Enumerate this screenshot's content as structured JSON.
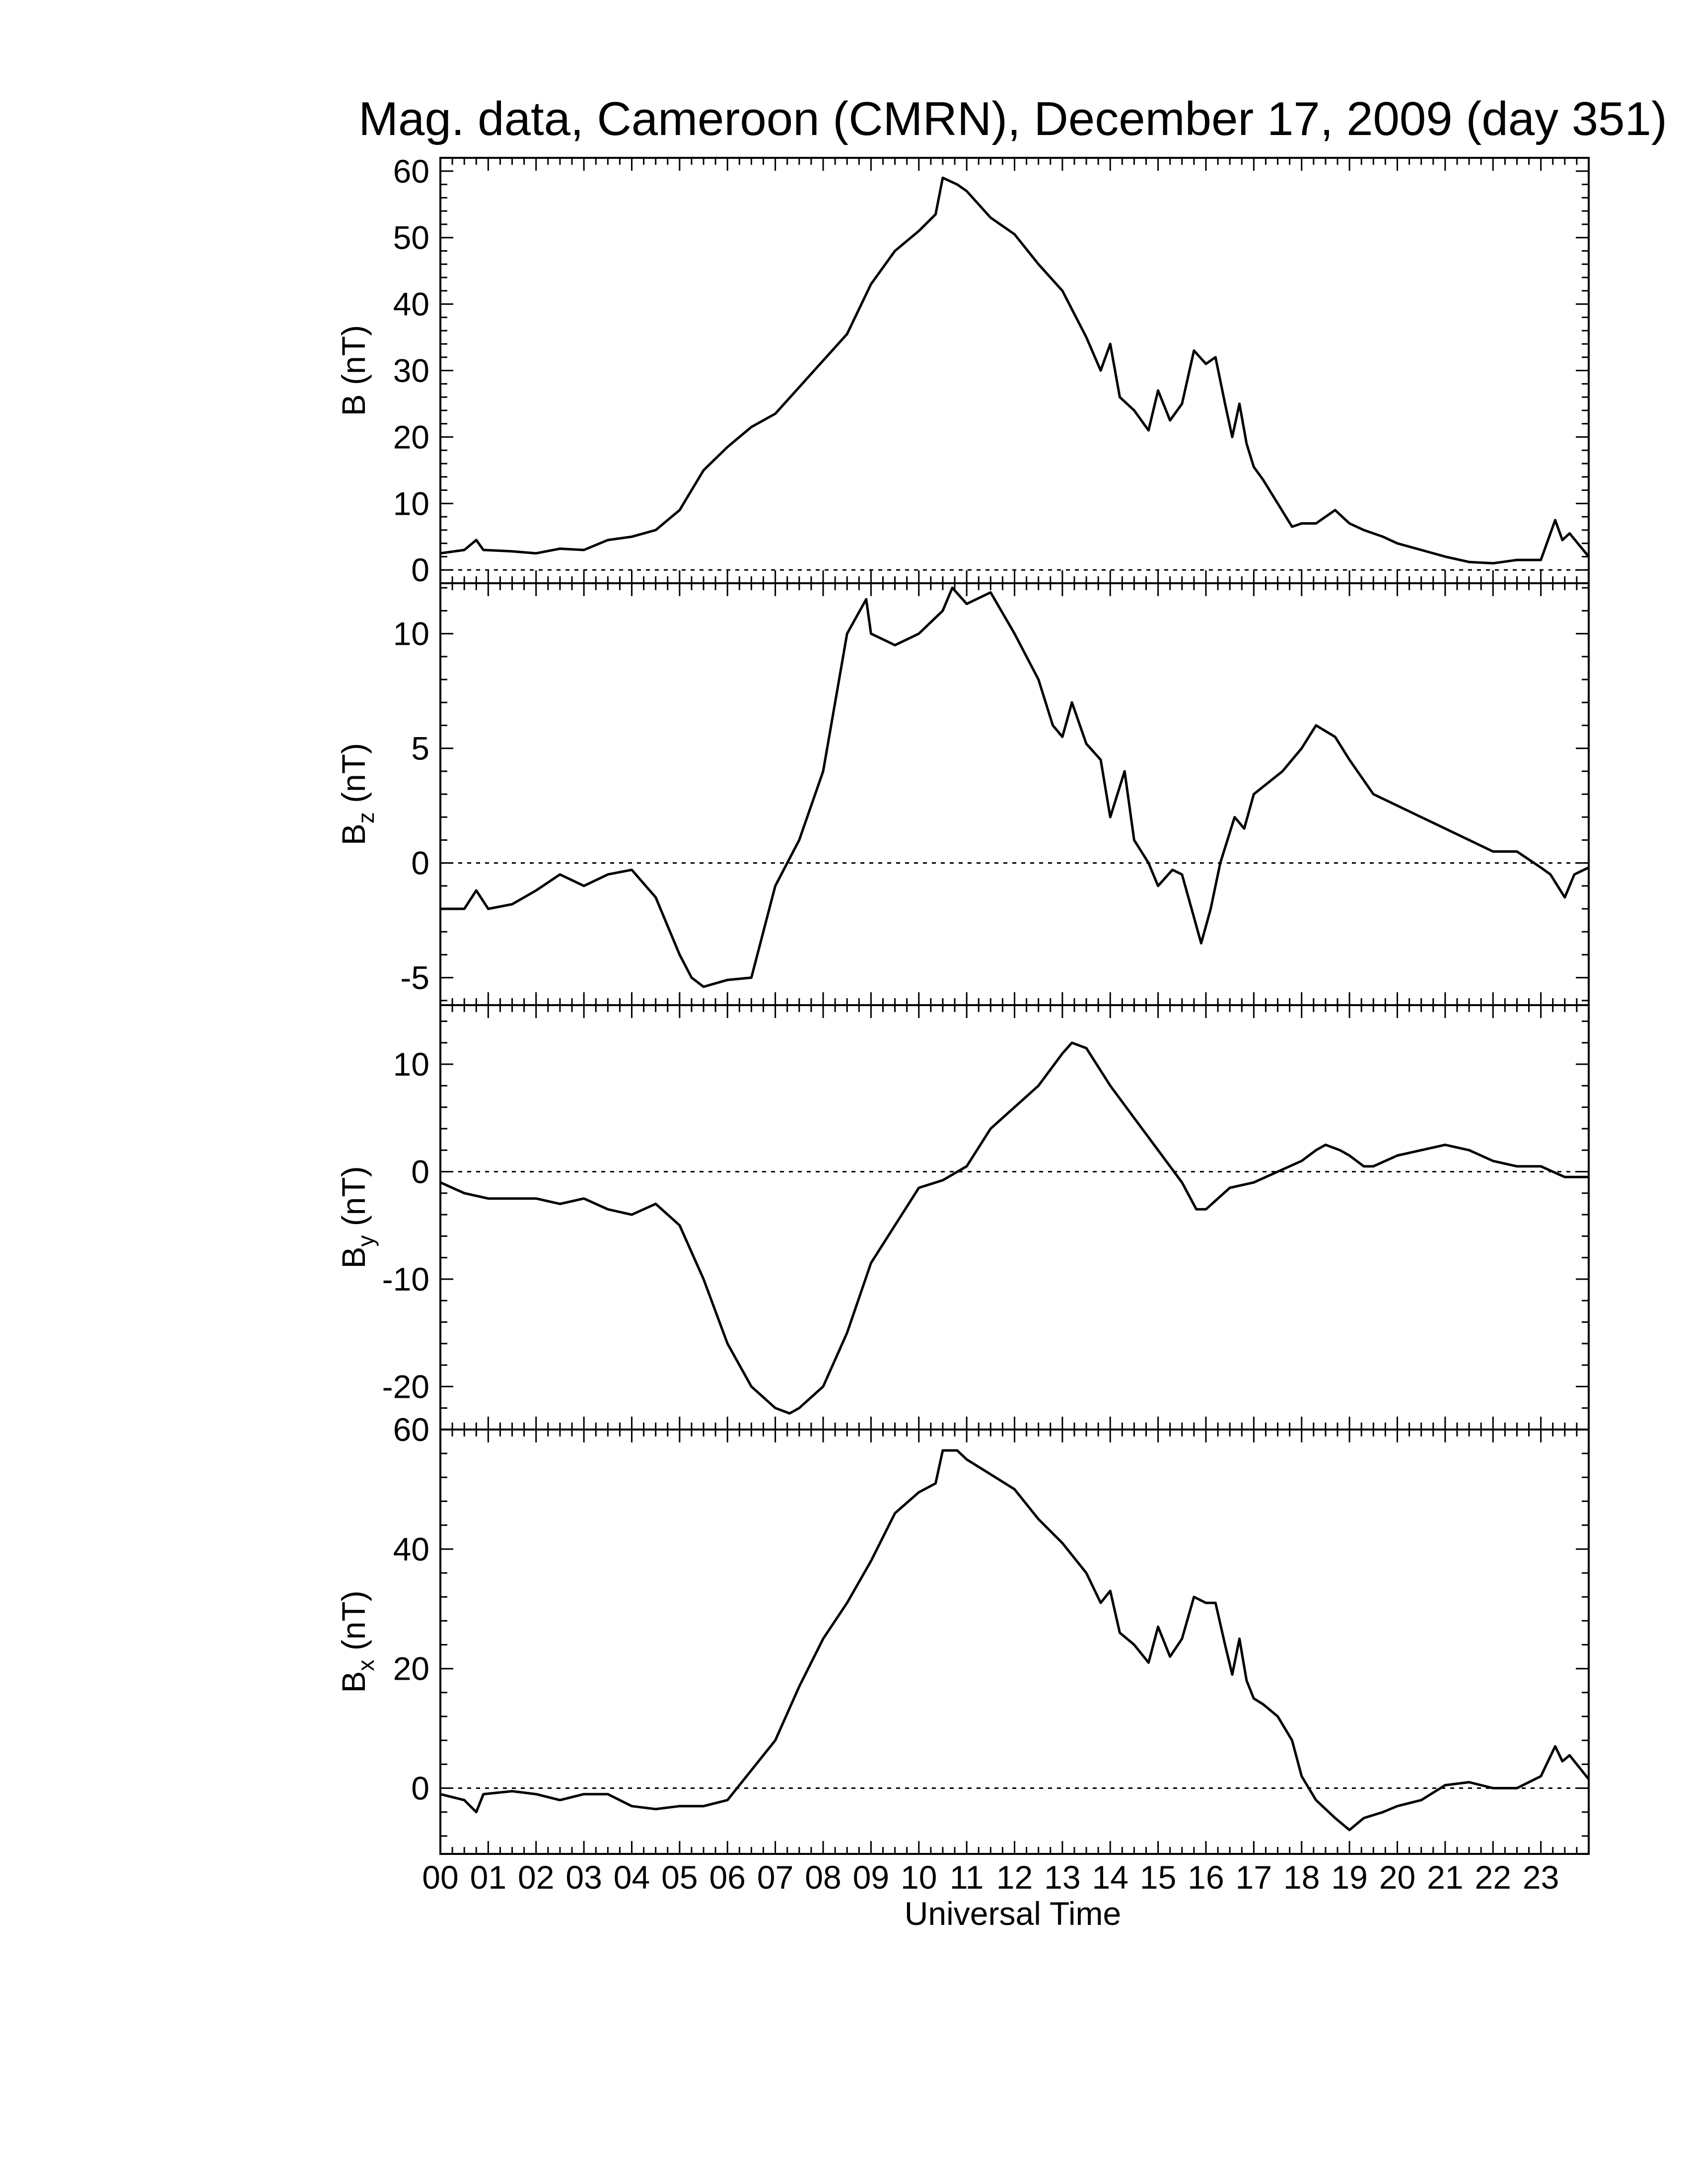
{
  "chart_data": {
    "type": "line",
    "title": "Mag. data, Cameroon (CMRN), December 17, 2009 (day 351)",
    "xlabel": "Universal Time",
    "x_tick_labels": [
      "00",
      "01",
      "02",
      "03",
      "04",
      "05",
      "06",
      "07",
      "08",
      "09",
      "10",
      "11",
      "12",
      "13",
      "14",
      "15",
      "16",
      "17",
      "18",
      "19",
      "20",
      "21",
      "22",
      "23"
    ],
    "xlim": [
      0,
      24
    ],
    "panels": [
      {
        "id": "B",
        "ylabel_main": "B",
        "ylabel_sub": "",
        "ylabel_unit": "(nT)",
        "ylim": [
          -2,
          62
        ],
        "yticks": [
          0,
          10,
          20,
          30,
          40,
          50,
          60
        ],
        "zero_line": true,
        "series": [
          {
            "x": [
              0,
              0.5,
              0.75,
              0.9,
              1.5,
              2,
              2.5,
              3,
              3.5,
              4,
              4.5,
              5,
              5.25,
              5.5,
              6,
              6.5,
              7,
              7.5,
              8,
              8.5,
              9,
              9.5,
              10,
              10.35,
              10.5,
              10.8,
              11,
              11.5,
              12,
              12.5,
              13,
              13.5,
              13.8,
              14,
              14.2,
              14.5,
              14.8,
              15,
              15.25,
              15.5,
              15.75,
              16,
              16.2,
              16.4,
              16.55,
              16.7,
              16.85,
              17,
              17.2,
              17.5,
              17.8,
              18,
              18.3,
              18.7,
              19,
              19.3,
              19.7,
              20,
              20.5,
              21,
              21.5,
              22,
              22.5,
              23,
              23.3,
              23.45,
              23.6,
              24
            ],
            "y": [
              2.5,
              3,
              4.5,
              3,
              2.8,
              2.5,
              3.2,
              3,
              4.5,
              5,
              6,
              9,
              12,
              15,
              18.5,
              21.5,
              23.5,
              27.5,
              31.5,
              35.5,
              43,
              48,
              51,
              53.5,
              59,
              58,
              57,
              53,
              50.5,
              46,
              42,
              35,
              30,
              34,
              26,
              24,
              21,
              27,
              22.5,
              25,
              33,
              31,
              32,
              25,
              20,
              25,
              19,
              15.5,
              13.5,
              10,
              6.5,
              7,
              7,
              9,
              7,
              6,
              5,
              4,
              3,
              2,
              1.2,
              1,
              1.5,
              1.5,
              7.5,
              4.5,
              5.5,
              2
            ]
          }
        ]
      },
      {
        "id": "Bz",
        "ylabel_main": "B",
        "ylabel_sub": "z",
        "ylabel_unit": "(nT)",
        "ylim": [
          -6.2,
          12.2
        ],
        "yticks": [
          -5,
          0,
          5,
          10
        ],
        "zero_line": true,
        "series": [
          {
            "x": [
              0,
              0.5,
              0.75,
              1,
              1.5,
              2,
              2.5,
              3,
              3.5,
              4,
              4.5,
              5,
              5.25,
              5.5,
              6,
              6.5,
              7,
              7.5,
              8,
              8.5,
              8.9,
              9,
              9.5,
              10,
              10.5,
              10.7,
              11,
              11.5,
              12,
              12.5,
              12.8,
              13,
              13.2,
              13.5,
              13.8,
              14,
              14.3,
              14.5,
              14.8,
              15,
              15.3,
              15.5,
              15.9,
              16.1,
              16.3,
              16.6,
              16.8,
              17,
              17.3,
              17.6,
              18,
              18.3,
              18.7,
              19,
              19.5,
              20,
              20.5,
              21,
              21.5,
              22,
              22.5,
              23,
              23.2,
              23.5,
              23.7,
              24
            ],
            "y": [
              -2,
              -2,
              -1.2,
              -2,
              -1.8,
              -1.2,
              -0.5,
              -1,
              -0.5,
              -0.3,
              -1.5,
              -4,
              -5,
              -5.4,
              -5.1,
              -5,
              -1,
              1,
              4,
              10,
              11.5,
              10,
              9.5,
              10,
              11,
              12,
              11.3,
              11.8,
              10,
              8,
              6,
              5.5,
              7,
              5.2,
              4.5,
              2,
              4,
              1,
              0,
              -1,
              -0.3,
              -0.5,
              -3.5,
              -2,
              0,
              2,
              1.5,
              3,
              3.5,
              4,
              5,
              6,
              5.5,
              4.5,
              3,
              2.5,
              2,
              1.5,
              1,
              0.5,
              0.5,
              -0.2,
              -0.5,
              -1.5,
              -0.5,
              -0.2
            ]
          }
        ]
      },
      {
        "id": "By",
        "ylabel_main": "B",
        "ylabel_sub": "y",
        "ylabel_unit": "(nT)",
        "ylim": [
          -24,
          15.5
        ],
        "yticks": [
          -20,
          -10,
          0,
          10
        ],
        "zero_line": true,
        "series": [
          {
            "x": [
              0,
              0.5,
              1,
              1.5,
              2,
              2.5,
              3,
              3.5,
              4,
              4.5,
              5,
              5.5,
              6,
              6.5,
              7,
              7.3,
              7.5,
              8,
              8.5,
              9,
              9.5,
              10,
              10.5,
              11,
              11.5,
              12,
              12.5,
              13,
              13.2,
              13.5,
              14,
              14.5,
              15,
              15.5,
              15.8,
              16,
              16.5,
              17,
              17.5,
              18,
              18.3,
              18.5,
              18.8,
              19,
              19.3,
              19.5,
              20,
              20.5,
              21,
              21.5,
              22,
              22.5,
              23,
              23.5,
              24
            ],
            "y": [
              -1,
              -2,
              -2.5,
              -2.5,
              -2.5,
              -3,
              -2.5,
              -3.5,
              -4,
              -3,
              -5,
              -10,
              -16,
              -20,
              -22,
              -22.5,
              -22,
              -20,
              -15,
              -8.5,
              -5,
              -1.5,
              -0.8,
              0.5,
              4,
              6,
              8,
              11,
              12,
              11.5,
              8,
              5,
              2,
              -1,
              -3.5,
              -3.5,
              -1.5,
              -1,
              0,
              1,
              2,
              2.5,
              2,
              1.5,
              0.5,
              0.5,
              1.5,
              2,
              2.5,
              2,
              1,
              0.5,
              0.5,
              -0.5,
              -0.5
            ]
          }
        ]
      },
      {
        "id": "Bx",
        "ylabel_main": "B",
        "ylabel_sub": "x",
        "ylabel_unit": "(nT)",
        "ylim": [
          -11,
          60
        ],
        "yticks": [
          0,
          20,
          40,
          60
        ],
        "zero_line": true,
        "series": [
          {
            "x": [
              0,
              0.5,
              0.75,
              0.9,
              1.5,
              2,
              2.5,
              3,
              3.5,
              4,
              4.5,
              5,
              5.5,
              6,
              6.5,
              7,
              7.5,
              8,
              8.5,
              9,
              9.5,
              10,
              10.35,
              10.5,
              10.8,
              11,
              11.5,
              12,
              12.5,
              13,
              13.5,
              13.8,
              14,
              14.2,
              14.5,
              14.8,
              15,
              15.25,
              15.5,
              15.75,
              16,
              16.2,
              16.4,
              16.55,
              16.7,
              16.85,
              17,
              17.2,
              17.5,
              17.8,
              18,
              18.3,
              18.7,
              19,
              19.3,
              19.7,
              20,
              20.5,
              21,
              21.5,
              22,
              22.5,
              23,
              23.3,
              23.45,
              23.6,
              24
            ],
            "y": [
              -1,
              -2,
              -4,
              -1,
              -0.5,
              -1,
              -2,
              -1,
              -1,
              -3,
              -3.5,
              -3,
              -3,
              -2,
              3,
              8,
              17,
              25,
              31,
              38,
              46,
              49.5,
              51,
              56.5,
              56.5,
              55,
              52.5,
              50,
              45,
              41,
              36,
              31,
              33,
              26,
              24,
              21,
              27,
              22,
              25,
              32,
              31,
              31,
              24,
              19,
              25,
              18,
              15,
              14,
              12,
              8,
              2,
              -2,
              -5,
              -7,
              -5,
              -4,
              -3,
              -2,
              0.5,
              1,
              0,
              0,
              2,
              7,
              4.5,
              5.5,
              1.5
            ]
          }
        ]
      }
    ]
  }
}
